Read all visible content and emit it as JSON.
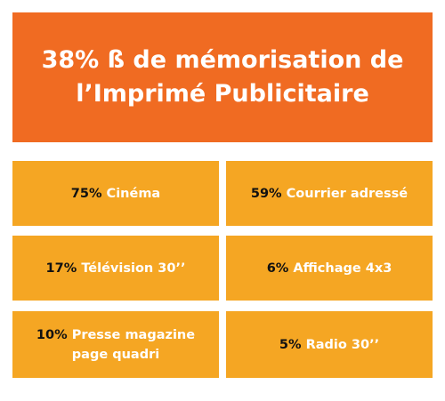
{
  "header": {
    "line1": "38% ß de mémorisation de",
    "line2": "l’Imprimé Publicitaire"
  },
  "tiles": [
    {
      "percent": "75%",
      "label": "Cinéma",
      "label2": ""
    },
    {
      "percent": "59%",
      "label": "Courrier adressé",
      "label2": ""
    },
    {
      "percent": "17%",
      "label": "Télévision 30’’",
      "label2": ""
    },
    {
      "percent": "6%",
      "label": "Affichage 4x3",
      "label2": ""
    },
    {
      "percent": "10%",
      "label": "Presse magazine",
      "label2": "page quadri"
    },
    {
      "percent": "5%",
      "label": "Radio 30’’",
      "label2": ""
    }
  ],
  "colors": {
    "header_bg": "#f06b22",
    "tile_bg": "#f5a623",
    "percent_text": "#111111",
    "label_text": "#ffffff"
  }
}
